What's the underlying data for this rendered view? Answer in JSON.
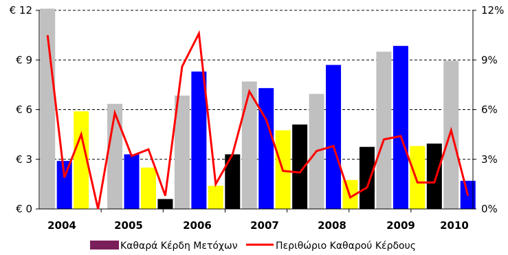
{
  "chart_data": {
    "type": "bar",
    "title": "",
    "xlabel": "",
    "ylabel": "",
    "categories": [
      "2004",
      "2005",
      "2006",
      "2007",
      "2008",
      "2009",
      "2010"
    ],
    "ylim": [
      0,
      12
    ],
    "y2lim": [
      0,
      12
    ],
    "y_ticks": [
      "€ 0",
      "€ 3",
      "€ 6",
      "€ 9",
      "€ 12"
    ],
    "y2_ticks": [
      "0%",
      "3%",
      "6%",
      "9%",
      "12%"
    ],
    "grid": true,
    "bars": [
      {
        "value": 12.1,
        "color": "#c0c0c0"
      },
      {
        "value": 2.9,
        "color": "#0000ff"
      },
      {
        "value": 5.9,
        "color": "#ffff00"
      },
      {
        "value": 0.0,
        "color": "#000000"
      },
      {
        "value": 6.35,
        "color": "#c0c0c0"
      },
      {
        "value": 3.3,
        "color": "#0000ff"
      },
      {
        "value": 2.5,
        "color": "#ffff00"
      },
      {
        "value": 0.6,
        "color": "#000000"
      },
      {
        "value": 6.85,
        "color": "#c0c0c0"
      },
      {
        "value": 8.3,
        "color": "#0000ff"
      },
      {
        "value": 1.4,
        "color": "#ffff00"
      },
      {
        "value": 3.3,
        "color": "#000000"
      },
      {
        "value": 7.7,
        "color": "#c0c0c0"
      },
      {
        "value": 7.3,
        "color": "#0000ff"
      },
      {
        "value": 4.75,
        "color": "#ffff00"
      },
      {
        "value": 5.1,
        "color": "#000000"
      },
      {
        "value": 6.95,
        "color": "#c0c0c0"
      },
      {
        "value": 8.7,
        "color": "#0000ff"
      },
      {
        "value": 1.75,
        "color": "#ffff00"
      },
      {
        "value": 3.75,
        "color": "#000000"
      },
      {
        "value": 9.5,
        "color": "#c0c0c0"
      },
      {
        "value": 9.85,
        "color": "#0000ff"
      },
      {
        "value": 3.8,
        "color": "#ffff00"
      },
      {
        "value": 3.95,
        "color": "#000000"
      },
      {
        "value": 8.95,
        "color": "#c0c0c0"
      },
      {
        "value": 1.7,
        "color": "#0000ff"
      }
    ],
    "line_series": {
      "name": "Περιθώριο Καθαρού Κέρδους",
      "color": "#ff0000",
      "axis": "right",
      "values": [
        10.5,
        1.9,
        4.5,
        0.0,
        5.8,
        3.2,
        3.6,
        0.8,
        8.6,
        10.6,
        1.5,
        3.3,
        7.1,
        5.4,
        2.3,
        2.2,
        3.5,
        3.8,
        0.7,
        1.3,
        4.2,
        4.4,
        1.6,
        1.6,
        4.75,
        0.8
      ]
    },
    "legend": {
      "placement": "bottom",
      "items": [
        {
          "label": "Καθαρά Κέρδη Μετόχων",
          "color": "#7b1f5a",
          "kind": "box"
        },
        {
          "label": "Περιθώριο Καθαρού Κέρδους",
          "color": "#ff0000",
          "kind": "line"
        }
      ]
    }
  }
}
